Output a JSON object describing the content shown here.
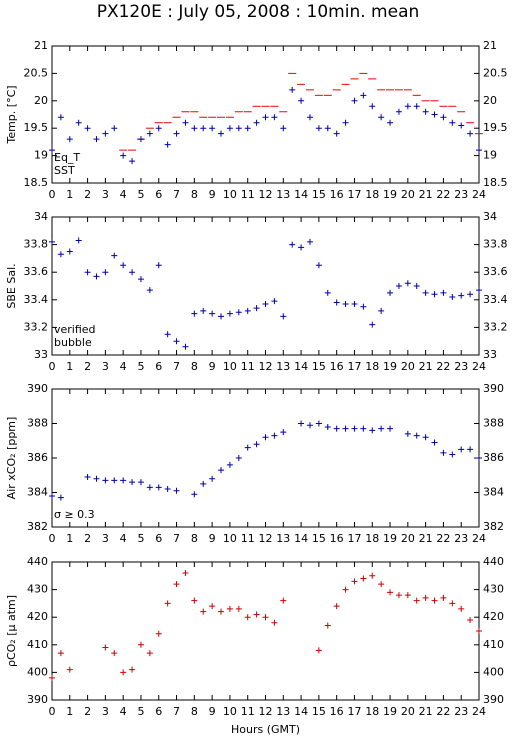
{
  "title": "PX120E : July 05, 2008 : 10min. mean",
  "chart_data": [
    {
      "type": "scatter",
      "ylabel": "Temp. [°C]",
      "x": [
        0,
        0.5,
        1,
        1.5,
        2,
        2.5,
        3,
        3.5,
        4,
        4.5,
        5,
        5.5,
        6,
        6.5,
        7,
        7.5,
        8,
        8.5,
        9,
        9.5,
        10,
        10.5,
        11,
        11.5,
        12,
        12.5,
        13,
        13.5,
        14,
        14.5,
        15,
        15.5,
        16,
        16.5,
        17,
        17.5,
        18,
        18.5,
        19,
        19.5,
        20,
        20.5,
        21,
        21.5,
        22,
        22.5,
        23,
        23.5,
        24
      ],
      "series": [
        {
          "name": "Eq_T",
          "color": "#ee0000",
          "marker": "dash",
          "values": [
            null,
            null,
            null,
            null,
            null,
            null,
            null,
            null,
            19.1,
            19.1,
            19.3,
            19.5,
            19.6,
            19.6,
            19.7,
            19.8,
            19.8,
            19.7,
            19.7,
            19.7,
            19.7,
            19.8,
            19.8,
            19.9,
            19.9,
            19.9,
            19.8,
            20.5,
            20.3,
            20.2,
            20.1,
            20.1,
            20.2,
            20.3,
            20.4,
            20.5,
            20.4,
            20.2,
            20.2,
            20.2,
            20.2,
            20.1,
            20.0,
            20.0,
            19.9,
            19.9,
            19.8,
            19.6,
            19.4
          ]
        },
        {
          "name": "SST",
          "color": "#0000aa",
          "marker": "plus",
          "values": [
            19.1,
            19.7,
            19.3,
            19.6,
            19.5,
            19.3,
            19.4,
            19.5,
            19.0,
            18.9,
            19.3,
            19.4,
            19.5,
            19.2,
            19.4,
            19.6,
            19.5,
            19.5,
            19.5,
            19.4,
            19.5,
            19.5,
            19.5,
            19.6,
            19.7,
            19.7,
            19.5,
            20.2,
            20.0,
            19.7,
            19.5,
            19.5,
            19.4,
            19.6,
            20.0,
            20.1,
            19.9,
            19.7,
            19.6,
            19.8,
            19.9,
            19.9,
            19.8,
            19.75,
            19.7,
            19.6,
            19.55,
            19.4,
            19.1
          ]
        }
      ],
      "xlim": [
        0,
        24
      ],
      "xticks": [
        0,
        1,
        2,
        3,
        4,
        5,
        6,
        7,
        8,
        9,
        10,
        11,
        12,
        13,
        14,
        15,
        16,
        17,
        18,
        19,
        20,
        21,
        22,
        23,
        24
      ],
      "ylim": [
        18.5,
        21
      ],
      "yticks": [
        18.5,
        19,
        19.5,
        20,
        20.5,
        21
      ]
    },
    {
      "type": "scatter",
      "ylabel": "SBE Sal.",
      "x": [
        0,
        0.5,
        1,
        1.5,
        2,
        2.5,
        3,
        3.5,
        4,
        4.5,
        5,
        5.5,
        6,
        6.5,
        7,
        7.5,
        8,
        8.5,
        9,
        9.5,
        10,
        10.5,
        11,
        11.5,
        12,
        12.5,
        13,
        13.5,
        14,
        14.5,
        15,
        15.5,
        16,
        16.5,
        17,
        17.5,
        18,
        18.5,
        19,
        19.5,
        20,
        20.5,
        21,
        21.5,
        22,
        22.5,
        23,
        23.5,
        24
      ],
      "series": [
        {
          "name": "verified",
          "color": "#0000aa",
          "marker": "plus",
          "values": [
            33.82,
            33.73,
            33.75,
            33.83,
            33.6,
            33.57,
            33.6,
            33.72,
            33.65,
            33.6,
            33.55,
            33.47,
            33.65,
            33.15,
            33.1,
            33.06,
            33.3,
            33.32,
            33.3,
            33.28,
            33.3,
            33.31,
            33.32,
            33.34,
            33.37,
            33.39,
            33.28,
            33.8,
            33.78,
            33.82,
            33.65,
            33.45,
            33.38,
            33.37,
            33.37,
            33.35,
            33.22,
            33.32,
            33.45,
            33.5,
            33.52,
            33.5,
            33.45,
            33.44,
            33.45,
            33.42,
            33.43,
            33.44,
            33.47
          ]
        }
      ],
      "legend_extra": [
        {
          "name": "bubble",
          "color": "#cc00cc"
        }
      ],
      "xlim": [
        0,
        24
      ],
      "xticks": [
        0,
        1,
        2,
        3,
        4,
        5,
        6,
        7,
        8,
        9,
        10,
        11,
        12,
        13,
        14,
        15,
        16,
        17,
        18,
        19,
        20,
        21,
        22,
        23,
        24
      ],
      "ylim": [
        33,
        34
      ],
      "yticks": [
        33,
        33.2,
        33.4,
        33.6,
        33.8,
        34
      ]
    },
    {
      "type": "scatter",
      "ylabel": "Air xCO₂ [ppm]",
      "x": [
        0,
        0.5,
        1,
        1.5,
        2,
        2.5,
        3,
        3.5,
        4,
        4.5,
        5,
        5.5,
        6,
        6.5,
        7,
        7.5,
        8,
        8.5,
        9,
        9.5,
        10,
        10.5,
        11,
        11.5,
        12,
        12.5,
        13,
        13.5,
        14,
        14.5,
        15,
        15.5,
        16,
        16.5,
        17,
        17.5,
        18,
        18.5,
        19,
        19.5,
        20,
        20.5,
        21,
        21.5,
        22,
        22.5,
        23,
        23.5,
        24
      ],
      "series": [
        {
          "name": null,
          "color": "#0000aa",
          "marker": "plus",
          "values": [
            383.8,
            383.7,
            null,
            null,
            384.9,
            384.8,
            384.7,
            384.7,
            384.7,
            384.6,
            384.6,
            384.3,
            384.3,
            384.2,
            384.1,
            null,
            383.9,
            384.5,
            384.8,
            385.3,
            385.6,
            386.0,
            386.6,
            386.8,
            387.2,
            387.3,
            387.5,
            null,
            388.0,
            387.9,
            388.0,
            387.8,
            387.7,
            387.7,
            387.7,
            387.7,
            387.6,
            387.7,
            387.7,
            null,
            387.4,
            387.3,
            387.2,
            386.9,
            386.3,
            386.2,
            386.5,
            386.5,
            386.0
          ]
        }
      ],
      "legend_extra": [
        {
          "name": "σ ≥ 0.3",
          "color": "#cc00cc"
        }
      ],
      "xlim": [
        0,
        24
      ],
      "xticks": [
        0,
        1,
        2,
        3,
        4,
        5,
        6,
        7,
        8,
        9,
        10,
        11,
        12,
        13,
        14,
        15,
        16,
        17,
        18,
        19,
        20,
        21,
        22,
        23,
        24
      ],
      "ylim": [
        382,
        390
      ],
      "yticks": [
        382,
        384,
        386,
        388,
        390
      ]
    },
    {
      "type": "scatter",
      "ylabel": "ρCO₂ [μ atm]",
      "xlabel": "Hours (GMT)",
      "x": [
        0,
        0.5,
        1,
        1.5,
        2,
        2.5,
        3,
        3.5,
        4,
        4.5,
        5,
        5.5,
        6,
        6.5,
        7,
        7.5,
        8,
        8.5,
        9,
        9.5,
        10,
        10.5,
        11,
        11.5,
        12,
        12.5,
        13,
        13.5,
        14,
        14.5,
        15,
        15.5,
        16,
        16.5,
        17,
        17.5,
        18,
        18.5,
        19,
        19.5,
        20,
        20.5,
        21,
        21.5,
        22,
        22.5,
        23,
        23.5,
        24
      ],
      "series": [
        {
          "name": null,
          "color": "#cc0000",
          "marker": "plus",
          "values": [
            398,
            407,
            401,
            null,
            null,
            null,
            409,
            407,
            400,
            401,
            410,
            407,
            414,
            425,
            432,
            436,
            426,
            422,
            424,
            422,
            423,
            423,
            420,
            421,
            420,
            418,
            426,
            null,
            null,
            null,
            408,
            417,
            424,
            430,
            433,
            434,
            435,
            432,
            429,
            428,
            428,
            426,
            427,
            426,
            427,
            425,
            423,
            419,
            415
          ]
        }
      ],
      "xlim": [
        0,
        24
      ],
      "xticks": [
        0,
        1,
        2,
        3,
        4,
        5,
        6,
        7,
        8,
        9,
        10,
        11,
        12,
        13,
        14,
        15,
        16,
        17,
        18,
        19,
        20,
        21,
        22,
        23,
        24
      ],
      "ylim": [
        390,
        440
      ],
      "yticks": [
        390,
        400,
        410,
        420,
        430,
        440
      ]
    }
  ]
}
